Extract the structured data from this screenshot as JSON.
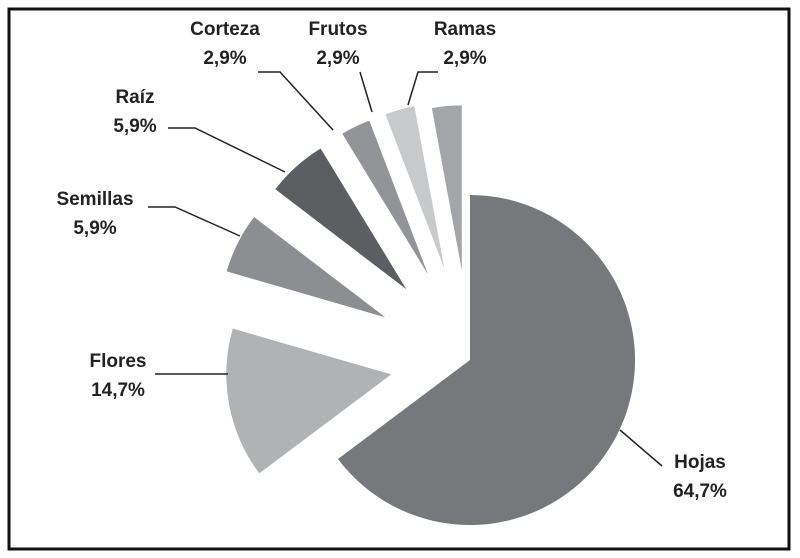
{
  "chart_data": {
    "type": "pie",
    "categories": [
      "Hojas",
      "Flores",
      "Semillas",
      "Raíz",
      "Corteza",
      "Frutos",
      "Ramas"
    ],
    "values": [
      64.7,
      14.7,
      5.9,
      5.9,
      2.9,
      2.9,
      2.9
    ],
    "value_labels": [
      "64,7%",
      "14,7%",
      "5,9%",
      "5,9%",
      "2,9%",
      "2,9%",
      "2,9%"
    ],
    "colors": [
      "#77787b",
      "#b1b2b4",
      "#8d8e91",
      "#5d5e61",
      "#939497",
      "#c8c9cb",
      "#a4a5a8"
    ]
  }
}
